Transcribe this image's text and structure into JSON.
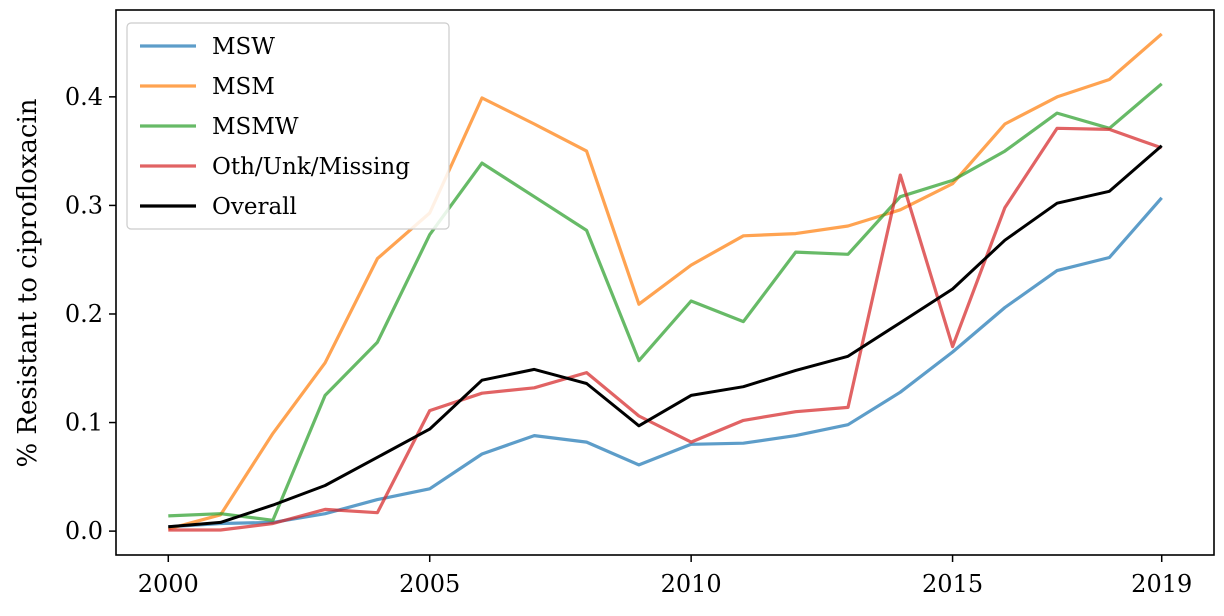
{
  "chart_data": {
    "type": "line",
    "title": "",
    "xlabel": "",
    "ylabel": "% Resistant to ciprofloxacin",
    "xlim": [
      1999.0,
      2020.0
    ],
    "ylim": [
      -0.022,
      0.48
    ],
    "x_ticks": [
      2000,
      2005,
      2010,
      2015,
      2019
    ],
    "y_ticks": [
      0.0,
      0.1,
      0.2,
      0.3,
      0.4
    ],
    "grid": false,
    "legend_placement": "top-left",
    "x": [
      2000,
      2001,
      2002,
      2003,
      2004,
      2005,
      2006,
      2007,
      2008,
      2009,
      2010,
      2011,
      2012,
      2013,
      2014,
      2015,
      2016,
      2017,
      2018,
      2019
    ],
    "series": [
      {
        "name": "MSW",
        "color": "#1f77b4",
        "values": [
          0.004,
          0.007,
          0.008,
          0.016,
          0.029,
          0.039,
          0.071,
          0.088,
          0.082,
          0.061,
          0.08,
          0.081,
          0.088,
          0.098,
          0.128,
          0.165,
          0.206,
          0.24,
          0.252,
          0.307
        ]
      },
      {
        "name": "MSM",
        "color": "#ff7f0e",
        "values": [
          0.002,
          0.015,
          0.09,
          0.155,
          0.251,
          0.293,
          0.399,
          0.375,
          0.35,
          0.209,
          0.245,
          0.272,
          0.274,
          0.281,
          0.296,
          0.32,
          0.375,
          0.4,
          0.416,
          0.458
        ]
      },
      {
        "name": "MSMW",
        "color": "#2ca02c",
        "values": [
          0.014,
          0.016,
          0.01,
          0.125,
          0.174,
          0.273,
          0.339,
          0.308,
          0.277,
          0.157,
          0.212,
          0.193,
          0.257,
          0.255,
          0.308,
          0.323,
          0.35,
          0.385,
          0.371,
          0.412
        ]
      },
      {
        "name": "Oth/Unk/Missing",
        "color": "#d62728",
        "values": [
          0.001,
          0.001,
          0.007,
          0.02,
          0.017,
          0.111,
          0.127,
          0.132,
          0.146,
          0.106,
          0.082,
          0.102,
          0.11,
          0.114,
          0.328,
          0.17,
          0.298,
          0.371,
          0.37,
          0.353
        ]
      },
      {
        "name": "Overall",
        "color": "#000000",
        "values": [
          0.004,
          0.008,
          0.024,
          0.042,
          0.068,
          0.094,
          0.139,
          0.149,
          0.136,
          0.097,
          0.125,
          0.133,
          0.148,
          0.161,
          0.192,
          0.223,
          0.268,
          0.302,
          0.313,
          0.355
        ]
      }
    ]
  }
}
